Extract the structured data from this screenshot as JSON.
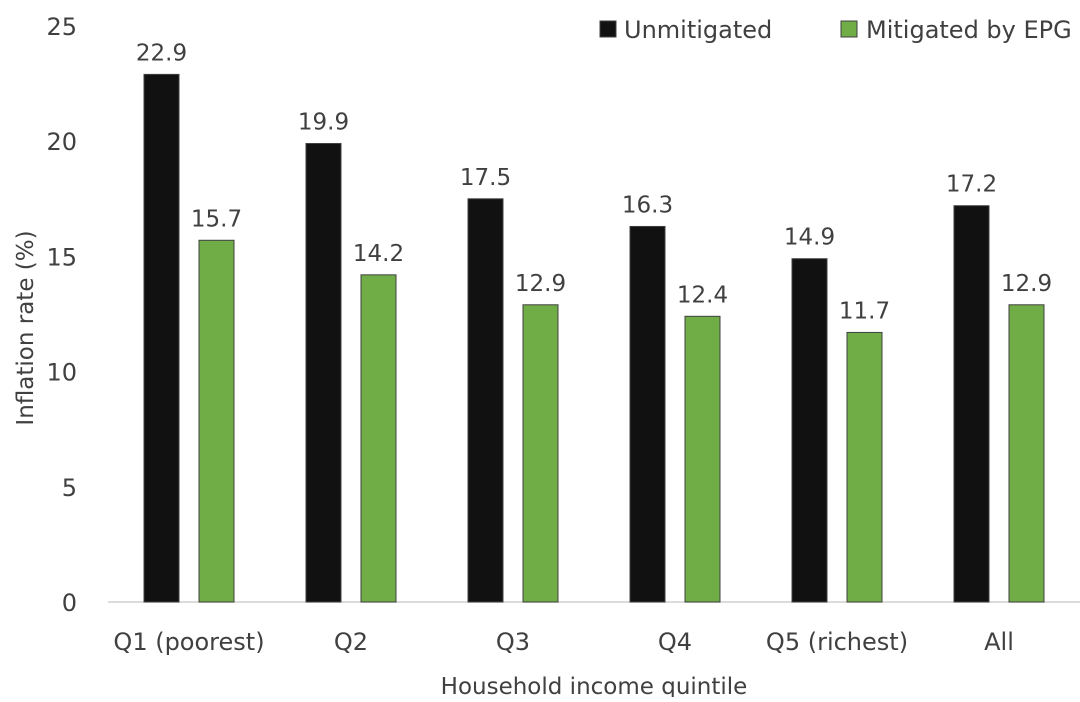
{
  "chart_data": {
    "type": "bar",
    "title": "",
    "xlabel": "Household income quintile",
    "ylabel": "Inflation rate (%)",
    "ylim": [
      0,
      25
    ],
    "yticks": [
      0,
      5,
      10,
      15,
      20,
      25
    ],
    "grid": false,
    "legend_position": "top-right",
    "categories": [
      "Q1 (poorest)",
      "Q2",
      "Q3",
      "Q4",
      "Q5 (richest)",
      "All"
    ],
    "series": [
      {
        "name": "Unmitigated",
        "color": "#111111",
        "values": [
          22.9,
          19.9,
          17.5,
          16.3,
          14.9,
          17.2
        ],
        "labels": [
          "22.9",
          "19.9",
          "17.5",
          "16.3",
          "14.9",
          "17.2"
        ]
      },
      {
        "name": "Mitigated by EPG",
        "color": "#70ad47",
        "values": [
          15.7,
          14.2,
          12.9,
          12.4,
          11.7,
          12.9
        ],
        "labels": [
          "15.7",
          "14.2",
          "12.9",
          "12.4",
          "11.7",
          "12.9"
        ]
      }
    ]
  }
}
